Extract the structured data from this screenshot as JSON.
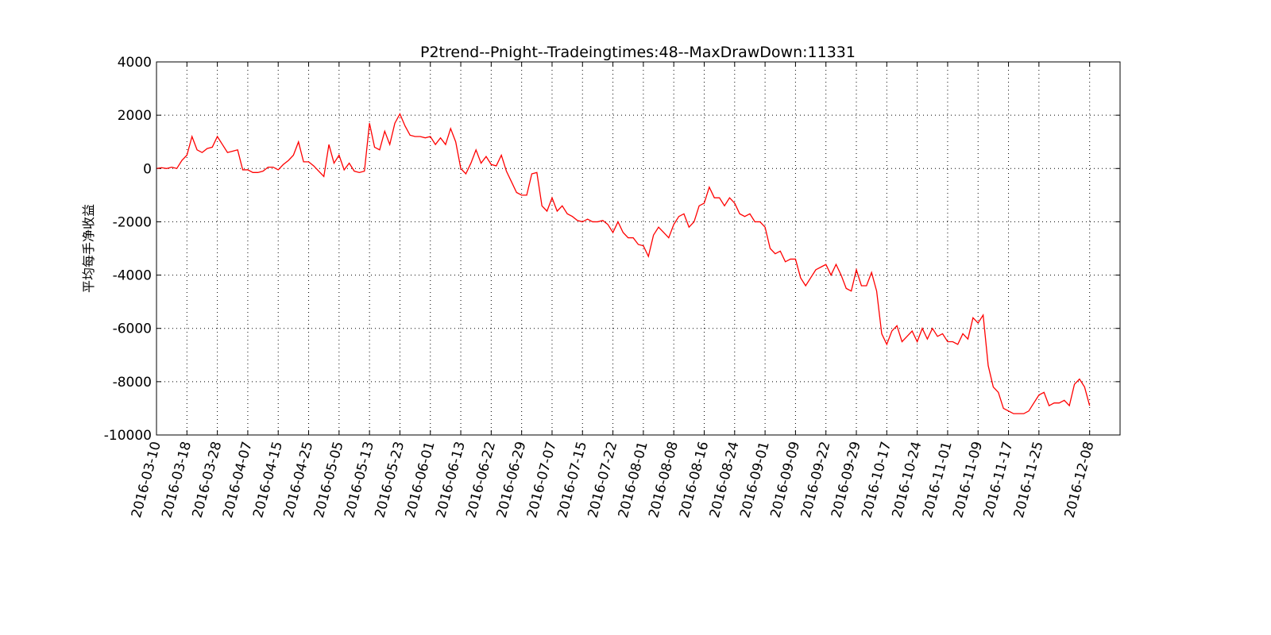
{
  "chart_data": {
    "type": "line",
    "title": "P2trend--Pnight--Tradeingtimes:48--MaxDrawDown:11331",
    "ylabel": "平均每手净收益",
    "color": "#ff0000",
    "grid": true,
    "xlim": [
      0,
      190
    ],
    "ylim": [
      -10000,
      4000
    ],
    "yticks": [
      4000,
      2000,
      0,
      -2000,
      -4000,
      -6000,
      -8000,
      -10000
    ],
    "xticks": [
      {
        "value": 0,
        "label": "2016-03-10"
      },
      {
        "value": 6,
        "label": "2016-03-18"
      },
      {
        "value": 12,
        "label": "2016-03-28"
      },
      {
        "value": 18,
        "label": "2016-04-07"
      },
      {
        "value": 24,
        "label": "2016-04-15"
      },
      {
        "value": 30,
        "label": "2016-04-25"
      },
      {
        "value": 36,
        "label": "2016-05-05"
      },
      {
        "value": 42,
        "label": "2016-05-13"
      },
      {
        "value": 48,
        "label": "2016-05-23"
      },
      {
        "value": 54,
        "label": "2016-06-01"
      },
      {
        "value": 60,
        "label": "2016-06-13"
      },
      {
        "value": 66,
        "label": "2016-06-22"
      },
      {
        "value": 72,
        "label": "2016-06-29"
      },
      {
        "value": 78,
        "label": "2016-07-07"
      },
      {
        "value": 84,
        "label": "2016-07-15"
      },
      {
        "value": 90,
        "label": "2016-07-22"
      },
      {
        "value": 96,
        "label": "2016-08-01"
      },
      {
        "value": 102,
        "label": "2016-08-08"
      },
      {
        "value": 108,
        "label": "2016-08-16"
      },
      {
        "value": 114,
        "label": "2016-08-24"
      },
      {
        "value": 120,
        "label": "2016-09-01"
      },
      {
        "value": 126,
        "label": "2016-09-09"
      },
      {
        "value": 132,
        "label": "2016-09-22"
      },
      {
        "value": 138,
        "label": "2016-09-29"
      },
      {
        "value": 144,
        "label": "2016-10-17"
      },
      {
        "value": 150,
        "label": "2016-10-24"
      },
      {
        "value": 156,
        "label": "2016-11-01"
      },
      {
        "value": 162,
        "label": "2016-11-09"
      },
      {
        "value": 168,
        "label": "2016-11-17"
      },
      {
        "value": 174,
        "label": "2016-11-25"
      },
      {
        "value": 184,
        "label": "2016-12-08"
      }
    ],
    "values": [
      0,
      30,
      0,
      50,
      0,
      300,
      500,
      1200,
      700,
      600,
      750,
      800,
      1200,
      900,
      600,
      650,
      700,
      -50,
      -50,
      -150,
      -150,
      -100,
      50,
      50,
      -50,
      150,
      300,
      500,
      1000,
      250,
      250,
      100,
      -100,
      -300,
      900,
      200,
      500,
      -50,
      200,
      -100,
      -150,
      -100,
      1700,
      800,
      700,
      1400,
      900,
      1700,
      2050,
      1600,
      1250,
      1200,
      1200,
      1150,
      1200,
      900,
      1150,
      900,
      1500,
      1000,
      0,
      -200,
      200,
      700,
      200,
      450,
      150,
      100,
      500,
      -100,
      -500,
      -900,
      -1000,
      -1000,
      -200,
      -150,
      -1400,
      -1600,
      -1100,
      -1600,
      -1400,
      -1700,
      -1800,
      -1950,
      -2000,
      -1900,
      -2000,
      -2000,
      -1950,
      -2100,
      -2400,
      -2000,
      -2400,
      -2600,
      -2600,
      -2850,
      -2900,
      -3300,
      -2500,
      -2200,
      -2400,
      -2600,
      -2100,
      -1800,
      -1700,
      -2200,
      -2000,
      -1400,
      -1300,
      -700,
      -1100,
      -1100,
      -1400,
      -1100,
      -1300,
      -1700,
      -1800,
      -1700,
      -2000,
      -2000,
      -2200,
      -3000,
      -3200,
      -3100,
      -3500,
      -3400,
      -3400,
      -4100,
      -4400,
      -4100,
      -3800,
      -3700,
      -3600,
      -4000,
      -3600,
      -4000,
      -4500,
      -4600,
      -3800,
      -4400,
      -4400,
      -3900,
      -4600,
      -6200,
      -6600,
      -6100,
      -5900,
      -6500,
      -6300,
      -6100,
      -6500,
      -6000,
      -6400,
      -6000,
      -6300,
      -6200,
      -6500,
      -6500,
      -6600,
      -6200,
      -6400,
      -5600,
      -5800,
      -5500,
      -7400,
      -8200,
      -8400,
      -9000,
      -9100,
      -9200,
      -9200,
      -9200,
      -9100,
      -8800,
      -8500,
      -8400,
      -8900,
      -8800,
      -8800,
      -8700,
      -8900,
      -8100,
      -7900,
      -8200,
      -8900
    ]
  }
}
